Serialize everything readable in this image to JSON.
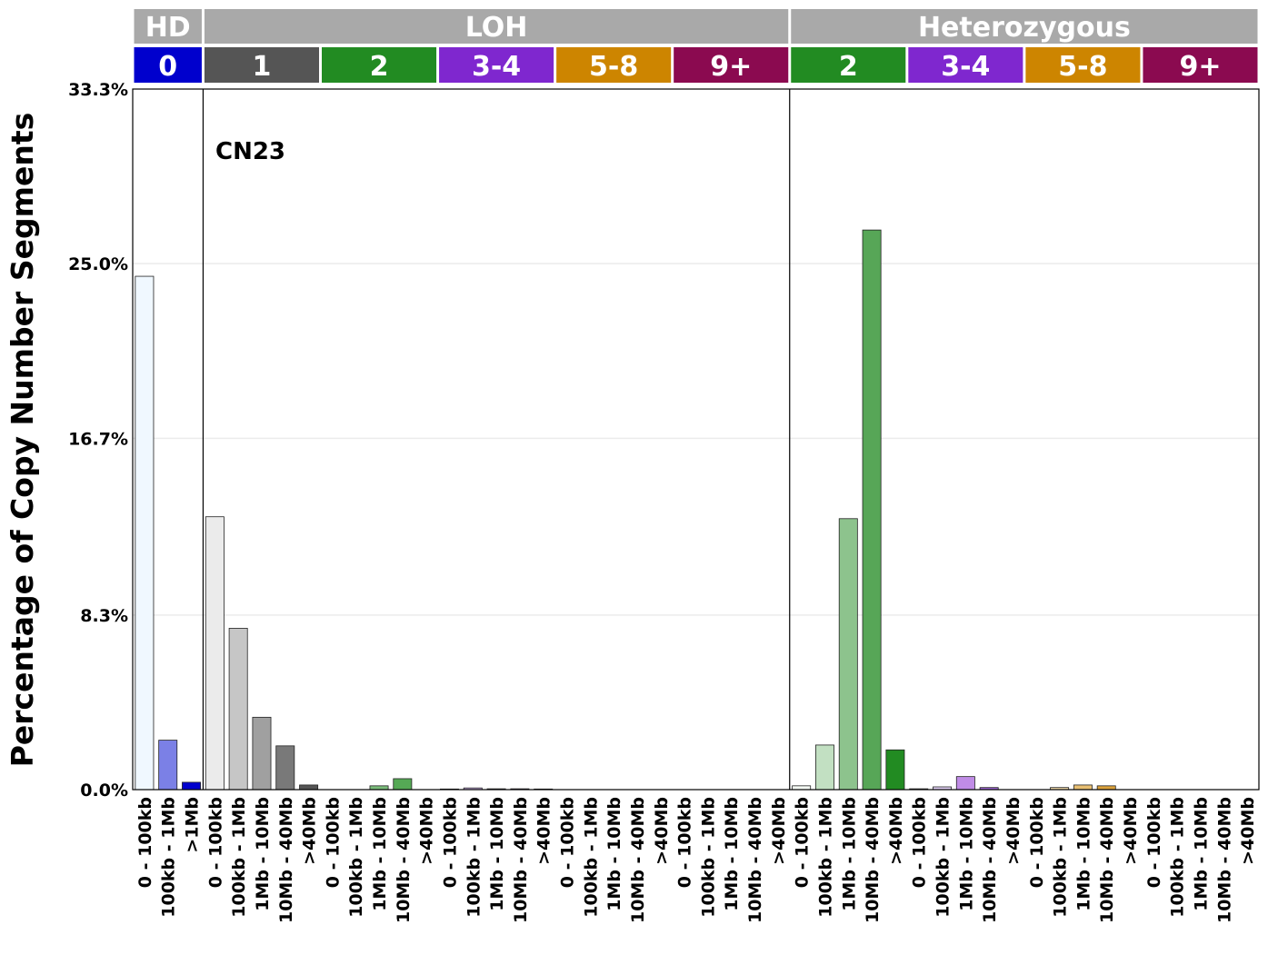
{
  "chart_data": {
    "type": "bar",
    "title": "CN23",
    "ylabel": "Percentage of Copy Number Segments",
    "xlabel": "",
    "ylim": [
      0,
      33.3
    ],
    "yticks": [
      "0.0%",
      "8.3%",
      "16.7%",
      "25.0%",
      "33.3%"
    ],
    "ytick_values": [
      0,
      8.3,
      16.7,
      25.0,
      33.3
    ],
    "grid": "horizontal",
    "top_groups": [
      {
        "label": "HD",
        "start": 0,
        "count": 3,
        "color": "#a9a9a9"
      },
      {
        "label": "LOH",
        "start": 3,
        "count": 25,
        "color": "#a9a9a9"
      },
      {
        "label": "Heterozygous",
        "start": 28,
        "count": 20,
        "color": "#a9a9a9"
      }
    ],
    "sub_groups": [
      {
        "label": "0",
        "start": 0,
        "count": 3,
        "color": "#0000cd"
      },
      {
        "label": "1",
        "start": 3,
        "count": 5,
        "color": "#555555"
      },
      {
        "label": "2",
        "start": 8,
        "count": 5,
        "color": "#228b22"
      },
      {
        "label": "3-4",
        "start": 13,
        "count": 5,
        "color": "#7f27cf"
      },
      {
        "label": "5-8",
        "start": 18,
        "count": 5,
        "color": "#cd8500"
      },
      {
        "label": "9+",
        "start": 23,
        "count": 5,
        "color": "#8b0a50"
      },
      {
        "label": "2",
        "start": 28,
        "count": 5,
        "color": "#228b22"
      },
      {
        "label": "3-4",
        "start": 33,
        "count": 5,
        "color": "#7f27cf"
      },
      {
        "label": "5-8",
        "start": 38,
        "count": 5,
        "color": "#cd8500"
      },
      {
        "label": "9+",
        "start": 43,
        "count": 5,
        "color": "#8b0a50"
      }
    ],
    "dividers_after": [
      2,
      27
    ],
    "categories": [
      "0 - 100kb",
      "100kb - 1Mb",
      ">1Mb",
      "0 - 100kb",
      "100kb - 1Mb",
      "1Mb - 10Mb",
      "10Mb - 40Mb",
      ">40Mb",
      "0 - 100kb",
      "100kb - 1Mb",
      "1Mb - 10Mb",
      "10Mb - 40Mb",
      ">40Mb",
      "0 - 100kb",
      "100kb - 1Mb",
      "1Mb - 10Mb",
      "10Mb - 40Mb",
      ">40Mb",
      "0 - 100kb",
      "100kb - 1Mb",
      "1Mb - 10Mb",
      "10Mb - 40Mb",
      ">40Mb",
      "0 - 100kb",
      "100kb - 1Mb",
      "1Mb - 10Mb",
      "10Mb - 40Mb",
      ">40Mb",
      "0 - 100kb",
      "100kb - 1Mb",
      "1Mb - 10Mb",
      "10Mb - 40Mb",
      ">40Mb",
      "0 - 100kb",
      "100kb - 1Mb",
      "1Mb - 10Mb",
      "10Mb - 40Mb",
      ">40Mb",
      "0 - 100kb",
      "100kb - 1Mb",
      "1Mb - 10Mb",
      "10Mb - 40Mb",
      ">40Mb",
      "0 - 100kb",
      "100kb - 1Mb",
      "1Mb - 10Mb",
      "10Mb - 40Mb",
      ">40Mb"
    ],
    "values": [
      24.4,
      2.35,
      0.35,
      12.97,
      7.67,
      3.44,
      2.08,
      0.22,
      0,
      0,
      0.18,
      0.52,
      0,
      0.03,
      0.08,
      0.04,
      0.04,
      0.03,
      0,
      0,
      0,
      0,
      0,
      0,
      0,
      0,
      0,
      0,
      0.18,
      2.12,
      12.88,
      26.6,
      1.89,
      0.04,
      0.13,
      0.62,
      0.1,
      0,
      0,
      0.1,
      0.22,
      0.18,
      0,
      0,
      0,
      0,
      0,
      0
    ],
    "colors": [
      "#f0f8ff",
      "#7b80e6",
      "#0000cd",
      "#ebebeb",
      "#c6c6c6",
      "#a0a0a0",
      "#797979",
      "#555555",
      "#c9e6c9",
      "#a2d2a2",
      "#7bbd7b",
      "#55a955",
      "#228b22",
      "#e8d9f5",
      "#d0b3ec",
      "#b88de2",
      "#a067d9",
      "#7f27cf",
      "#f7e6c7",
      "#f0d196",
      "#e8bb63",
      "#e0a532",
      "#cd8500",
      "#e6c4d6",
      "#d39ab9",
      "#bf6f9b",
      "#a8457c",
      "#8b0a50",
      "#f4faf4",
      "#c2e0c2",
      "#8dc38d",
      "#57a657",
      "#228b22",
      "#f0e7f9",
      "#e0cff4",
      "#c08ce6",
      "#a067d9",
      "#7f27cf",
      "#fbf1e0",
      "#f3dba9",
      "#e8bf72",
      "#dca23c",
      "#cd8500",
      "#f3e1ea",
      "#e5bed2",
      "#d598b8",
      "#bf6f9b",
      "#8b0a50"
    ]
  }
}
